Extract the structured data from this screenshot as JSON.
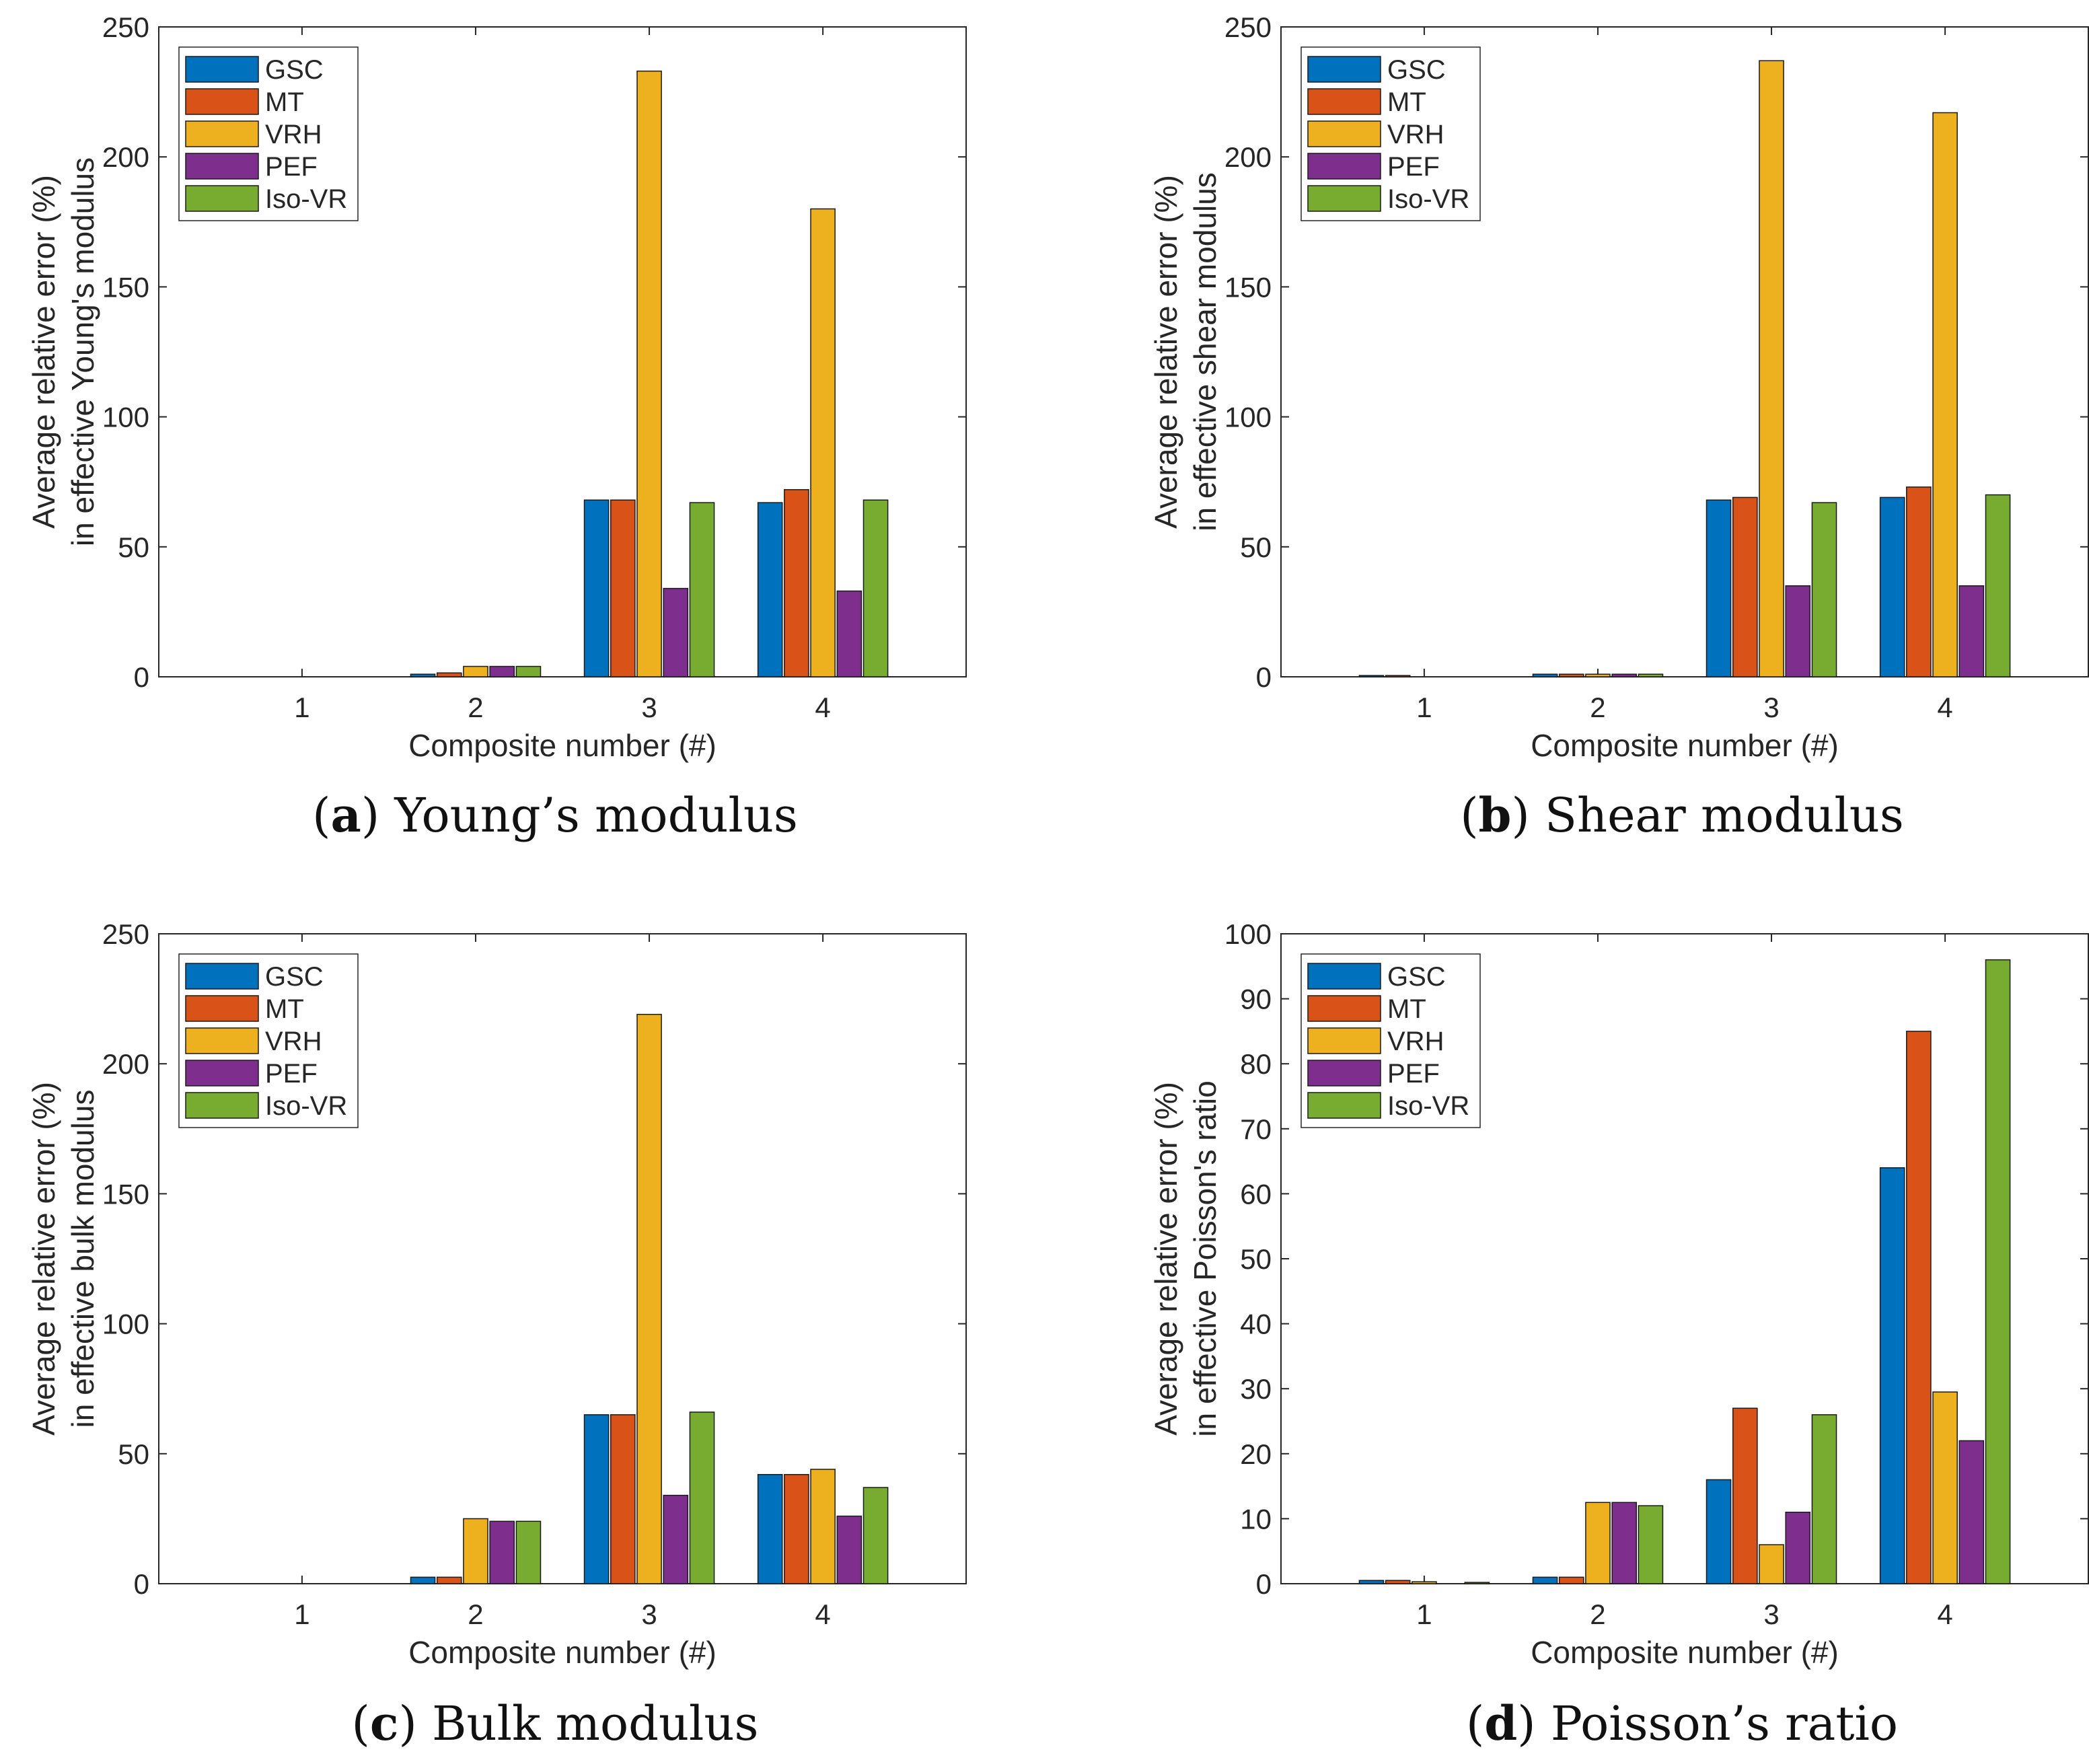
{
  "series_meta": [
    {
      "name": "GSC",
      "color": "#0072BD"
    },
    {
      "name": "MT",
      "color": "#D95319"
    },
    {
      "name": "VRH",
      "color": "#EDB120"
    },
    {
      "name": "PEF",
      "color": "#7E2F8E"
    },
    {
      "name": "Iso-VR",
      "color": "#77AC30"
    }
  ],
  "chart_data": [
    {
      "type": "bar",
      "panel": "a",
      "caption_letter": "a",
      "caption_text": "Young’s modulus",
      "categories": [
        "1",
        "2",
        "3",
        "4"
      ],
      "xlabel": "Composite number (#)",
      "ylabel": [
        "Average relative error (%)",
        "in effective Young's modulus"
      ],
      "ylim": [
        0,
        250
      ],
      "yticks": [
        "0",
        "50",
        "100",
        "150",
        "200",
        "250"
      ],
      "legend": "top-left",
      "series": [
        {
          "name": "GSC",
          "values": [
            0,
            1,
            68,
            67
          ]
        },
        {
          "name": "MT",
          "values": [
            0,
            1.5,
            68,
            72
          ]
        },
        {
          "name": "VRH",
          "values": [
            0,
            4,
            233,
            180
          ]
        },
        {
          "name": "PEF",
          "values": [
            0,
            4,
            34,
            33
          ]
        },
        {
          "name": "Iso-VR",
          "values": [
            0,
            4,
            67,
            68
          ]
        }
      ]
    },
    {
      "type": "bar",
      "panel": "b",
      "caption_letter": "b",
      "caption_text": "Shear modulus",
      "categories": [
        "1",
        "2",
        "3",
        "4"
      ],
      "xlabel": "Composite number (#)",
      "ylabel": [
        "Average relative error (%)",
        "in effective shear modulus"
      ],
      "ylim": [
        0,
        250
      ],
      "yticks": [
        "0",
        "50",
        "100",
        "150",
        "200",
        "250"
      ],
      "legend": "top-left",
      "series": [
        {
          "name": "GSC",
          "values": [
            0.5,
            1,
            68,
            69
          ]
        },
        {
          "name": "MT",
          "values": [
            0.5,
            1,
            69,
            73
          ]
        },
        {
          "name": "VRH",
          "values": [
            0,
            1,
            237,
            217
          ]
        },
        {
          "name": "PEF",
          "values": [
            0,
            1,
            35,
            35
          ]
        },
        {
          "name": "Iso-VR",
          "values": [
            0,
            1,
            67,
            70
          ]
        }
      ]
    },
    {
      "type": "bar",
      "panel": "c",
      "caption_letter": "c",
      "caption_text": "Bulk modulus",
      "categories": [
        "1",
        "2",
        "3",
        "4"
      ],
      "xlabel": "Composite number (#)",
      "ylabel": [
        "Average relative error (%)",
        "in effective bulk modulus"
      ],
      "ylim": [
        0,
        250
      ],
      "yticks": [
        "0",
        "50",
        "100",
        "150",
        "200",
        "250"
      ],
      "legend": "top-left",
      "series": [
        {
          "name": "GSC",
          "values": [
            0,
            2.5,
            65,
            42
          ]
        },
        {
          "name": "MT",
          "values": [
            0,
            2.5,
            65,
            42
          ]
        },
        {
          "name": "VRH",
          "values": [
            0,
            25,
            219,
            44
          ]
        },
        {
          "name": "PEF",
          "values": [
            0,
            24,
            34,
            26
          ]
        },
        {
          "name": "Iso-VR",
          "values": [
            0,
            24,
            66,
            37
          ]
        }
      ]
    },
    {
      "type": "bar",
      "panel": "d",
      "caption_letter": "d",
      "caption_text": "Poisson’s ratio",
      "categories": [
        "1",
        "2",
        "3",
        "4"
      ],
      "xlabel": "Composite number (#)",
      "ylabel": [
        "Average relative error (%)",
        "in effective Poisson's ratio"
      ],
      "ylim": [
        0,
        100
      ],
      "yticks": [
        "0",
        "10",
        "20",
        "30",
        "40",
        "50",
        "60",
        "70",
        "80",
        "90",
        "100"
      ],
      "legend": "top-left",
      "series": [
        {
          "name": "GSC",
          "values": [
            0.5,
            1,
            16,
            64
          ]
        },
        {
          "name": "MT",
          "values": [
            0.5,
            1,
            27,
            85
          ]
        },
        {
          "name": "VRH",
          "values": [
            0.3,
            12.5,
            6,
            29.5
          ]
        },
        {
          "name": "PEF",
          "values": [
            0,
            12.5,
            11,
            22
          ]
        },
        {
          "name": "Iso-VR",
          "values": [
            0.2,
            12,
            26,
            96
          ]
        }
      ]
    }
  ]
}
